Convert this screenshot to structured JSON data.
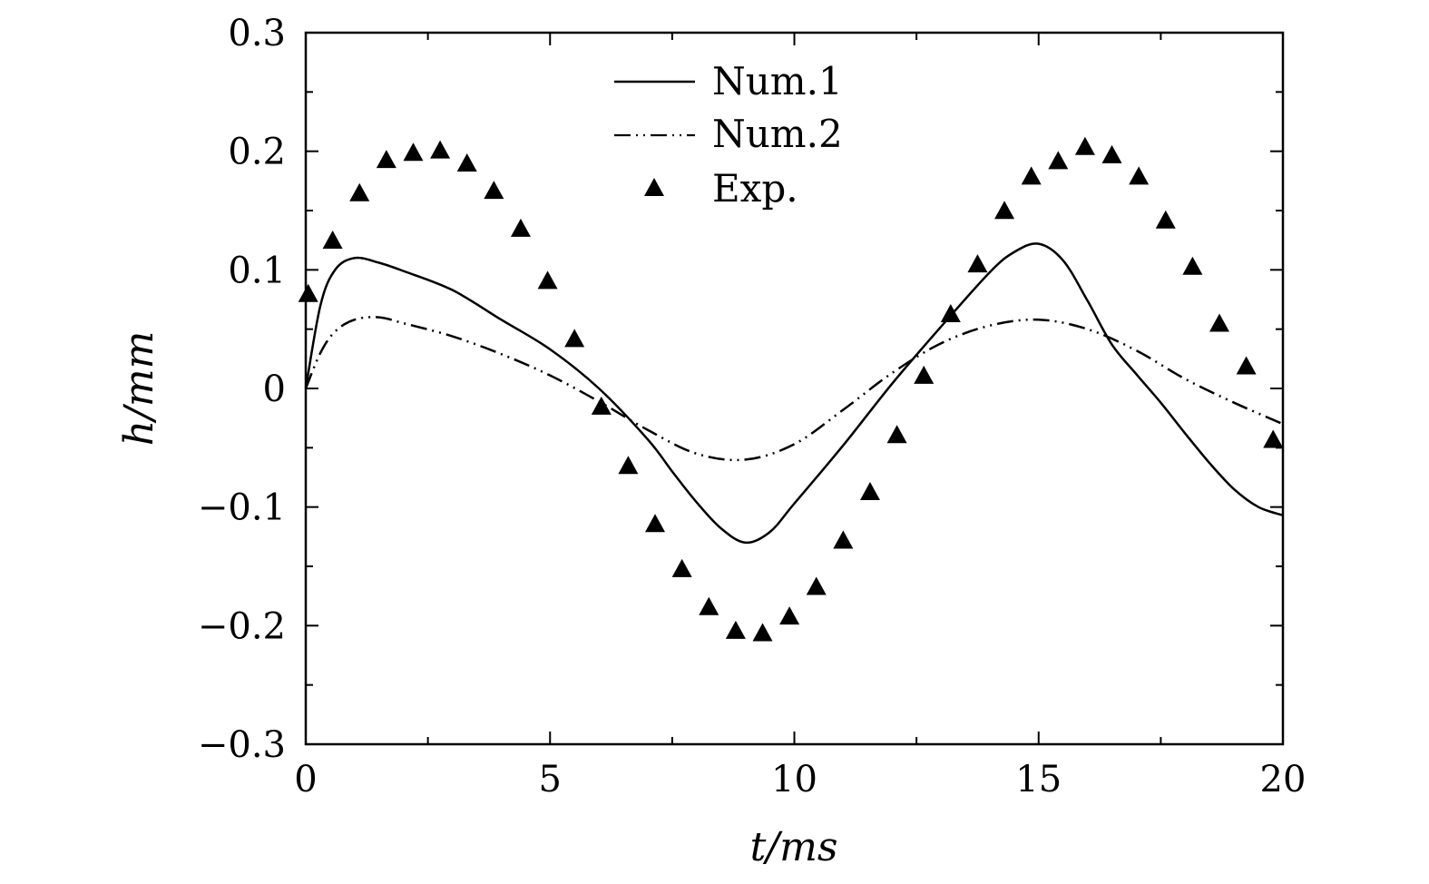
{
  "chart_data": {
    "type": "line",
    "xlabel": "t/ms",
    "ylabel": "h/mm",
    "xlim": [
      0,
      20
    ],
    "ylim": [
      -0.3,
      0.3
    ],
    "xticks": [
      0,
      5,
      10,
      15,
      20
    ],
    "xtick_labels": [
      "0",
      "5",
      "10",
      "15",
      "20"
    ],
    "yticks": [
      -0.3,
      -0.2,
      -0.1,
      0,
      0.1,
      0.2,
      0.3
    ],
    "ytick_labels": [
      "−0.3",
      "−0.2",
      "−0.1",
      "0",
      "0.1",
      "0.2",
      "0.3"
    ],
    "legend_position": "top-center",
    "grid": false,
    "series": [
      {
        "name": "Num.1",
        "style": "solid",
        "marker": "none",
        "color": "#000000",
        "x": [
          0,
          0.3,
          0.6,
          1.0,
          1.5,
          2.0,
          3.0,
          4.0,
          5.0,
          6.0,
          7.0,
          7.5,
          8.0,
          8.5,
          9.0,
          9.5,
          10.0,
          11.0,
          12.0,
          13.0,
          14.0,
          14.5,
          15.0,
          15.5,
          16.0,
          16.5,
          17.0,
          17.5,
          18.0,
          18.5,
          19.0,
          19.5,
          20.0
        ],
        "y": [
          0,
          0.07,
          0.1,
          0.11,
          0.106,
          0.099,
          0.083,
          0.058,
          0.033,
          0.0,
          -0.043,
          -0.07,
          -0.096,
          -0.118,
          -0.13,
          -0.121,
          -0.097,
          -0.048,
          0.004,
          0.052,
          0.098,
          0.115,
          0.122,
          0.108,
          0.074,
          0.037,
          0.012,
          -0.012,
          -0.038,
          -0.063,
          -0.085,
          -0.1,
          -0.107
        ]
      },
      {
        "name": "Num.2",
        "style": "dash-dot-dot",
        "marker": "none",
        "color": "#000000",
        "x": [
          0,
          0.3,
          0.6,
          1.0,
          1.5,
          2.0,
          3.0,
          4.0,
          5.0,
          6.0,
          7.0,
          8.0,
          9.0,
          10.0,
          11.0,
          12.0,
          13.0,
          14.0,
          15.0,
          16.0,
          17.0,
          18.0,
          19.0,
          20.0
        ],
        "y": [
          0,
          0.03,
          0.048,
          0.058,
          0.06,
          0.055,
          0.044,
          0.029,
          0.011,
          -0.011,
          -0.035,
          -0.055,
          -0.06,
          -0.047,
          -0.018,
          0.013,
          0.038,
          0.053,
          0.058,
          0.05,
          0.032,
          0.008,
          -0.012,
          -0.03
        ]
      },
      {
        "name": "Exp.",
        "style": "none",
        "marker": "triangle-filled",
        "color": "#000000",
        "x": [
          0.05,
          0.55,
          1.1,
          1.65,
          2.2,
          2.75,
          3.3,
          3.85,
          4.4,
          4.95,
          5.5,
          6.05,
          6.6,
          7.15,
          7.7,
          8.25,
          8.8,
          9.35,
          9.9,
          10.45,
          11.0,
          11.55,
          12.1,
          12.65,
          13.2,
          13.75,
          14.3,
          14.85,
          15.4,
          15.95,
          16.5,
          17.05,
          17.6,
          18.15,
          18.7,
          19.25,
          19.8
        ],
        "y": [
          0.079,
          0.124,
          0.164,
          0.192,
          0.198,
          0.2,
          0.189,
          0.166,
          0.134,
          0.09,
          0.041,
          -0.016,
          -0.066,
          -0.115,
          -0.153,
          -0.185,
          -0.205,
          -0.207,
          -0.193,
          -0.168,
          -0.129,
          -0.088,
          -0.04,
          0.01,
          0.062,
          0.104,
          0.149,
          0.178,
          0.191,
          0.203,
          0.196,
          0.178,
          0.141,
          0.102,
          0.054,
          0.018,
          -0.044
        ]
      }
    ]
  }
}
